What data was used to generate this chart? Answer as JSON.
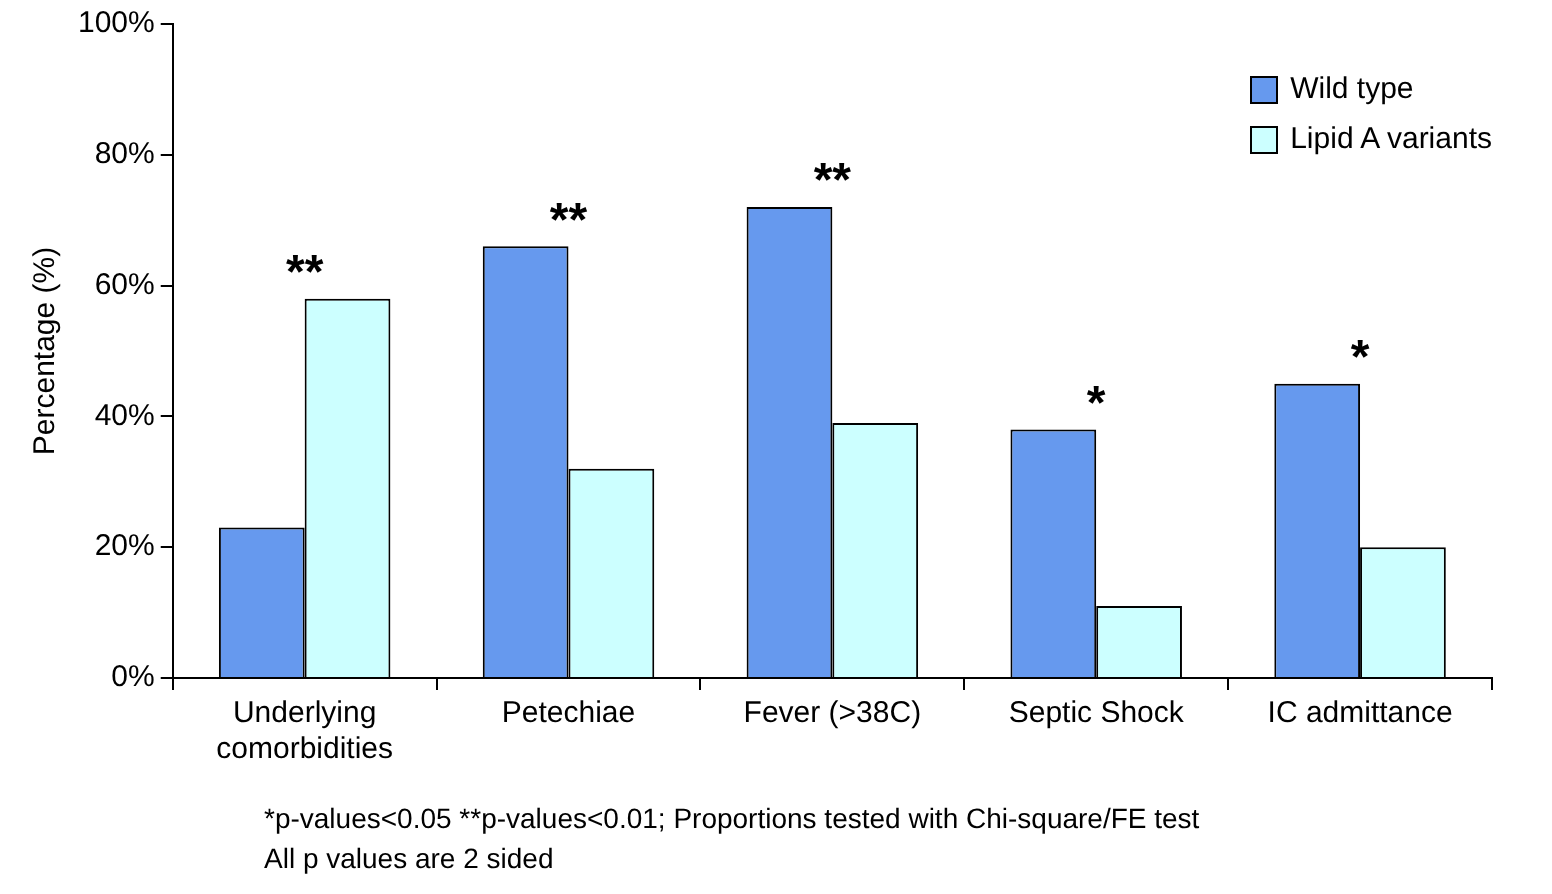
{
  "chart_data": {
    "type": "bar",
    "ylabel": "Percentage (%)",
    "categories": [
      "Underlying comorbidities",
      "Petechiae",
      "Fever (>38C)",
      "Septic Shock",
      "IC admittance"
    ],
    "series": [
      {
        "name": "Wild type",
        "color": "#6699ee",
        "values": [
          23,
          66,
          72,
          38,
          45
        ]
      },
      {
        "name": "Lipid A variants",
        "color": "#ccffff",
        "values": [
          58,
          32,
          39,
          11,
          20
        ]
      }
    ],
    "ylim": [
      0,
      100
    ],
    "yticks": [
      {
        "value": 0,
        "label": "0%"
      },
      {
        "value": 20,
        "label": "20%"
      },
      {
        "value": 40,
        "label": "40%"
      },
      {
        "value": 60,
        "label": "60%"
      },
      {
        "value": 80,
        "label": "80%"
      },
      {
        "value": 100,
        "label": "100%"
      }
    ],
    "grid": false,
    "legend": "top right",
    "annotations": [
      {
        "text": "**",
        "x": "Underlying comorbidities",
        "y": 58
      },
      {
        "text": "**",
        "x": "Petechiae",
        "y": 66
      },
      {
        "text": "**",
        "x": "Fever (>38C)",
        "y": 72
      },
      {
        "text": "*",
        "x": "Septic Shock",
        "y": 38
      },
      {
        "text": "*",
        "x": "IC admittance",
        "y": 45
      },
      "*p-values<0.05 **p-values<0.01; Proportions tested with Chi-square/FE test",
      "All p values are 2 sided"
    ]
  }
}
